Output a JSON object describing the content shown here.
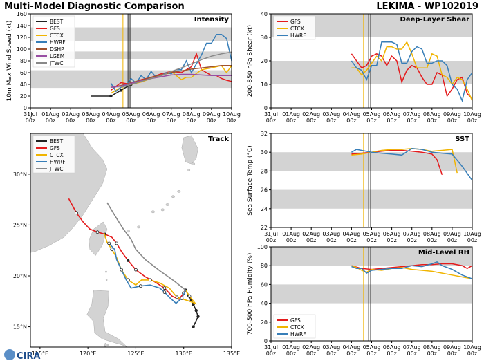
{
  "header": {
    "left_title": "Multi-Model Diagnostic Comparison",
    "right_title": "LEKIMA - WP102019"
  },
  "colors": {
    "BEST": "#222222",
    "GFS": "#e41a1c",
    "CTCX": "#f0b400",
    "HWRF": "#377eb8",
    "DSHP": "#a0522d",
    "LGEM": "#984ea3",
    "JTWC": "#888888",
    "band": "#d3d3d3",
    "land": "#d3d3d3"
  },
  "x_ticks": [
    "31Jul\n00z",
    "01Aug\n00z",
    "02Aug\n00z",
    "03Aug\n00z",
    "04Aug\n00z",
    "05Aug\n00z",
    "06Aug\n00z",
    "07Aug\n00z",
    "08Aug\n00z",
    "09Aug\n00z",
    "10Aug\n00z"
  ],
  "verticals": [
    {
      "x": 4.6,
      "color": "#f0b400"
    },
    {
      "x": 4.85,
      "color": "#222222"
    },
    {
      "x": 4.95,
      "color": "#222222"
    }
  ],
  "logo": {
    "text": "CIRA"
  },
  "chart_data": [
    {
      "type": "line",
      "title": "Intensity",
      "ylabel": "10m Max Wind Speed (kt)",
      "xlim": [
        0,
        10
      ],
      "ylim": [
        0,
        160
      ],
      "yticks": [
        0,
        20,
        40,
        60,
        80,
        100,
        120,
        140,
        160
      ],
      "bands": [
        [
          34,
          64
        ],
        [
          83,
          96
        ],
        [
          113,
          137
        ]
      ],
      "legend": "top-left",
      "series": [
        {
          "name": "BEST",
          "color": "#222222",
          "x": [
            3,
            3.5,
            4,
            4.25,
            4.5,
            4.75,
            5
          ],
          "y": [
            20,
            20,
            20,
            25,
            30,
            35,
            40
          ]
        },
        {
          "name": "GFS",
          "color": "#e41a1c",
          "x": [
            4,
            4.5,
            5,
            5.5,
            6,
            6.5,
            7,
            7.5,
            8,
            8.25,
            8.5,
            8.75,
            9,
            9.25,
            9.5,
            9.75,
            10
          ],
          "y": [
            30,
            43,
            40,
            48,
            52,
            58,
            62,
            60,
            70,
            92,
            65,
            60,
            55,
            55,
            50,
            47,
            45
          ]
        },
        {
          "name": "CTCX",
          "color": "#f0b400",
          "x": [
            4,
            4.5,
            5,
            5.5,
            6,
            6.5,
            7,
            7.5,
            7.75,
            8,
            8.5,
            9,
            9.5,
            9.75,
            10
          ],
          "y": [
            25,
            35,
            40,
            44,
            50,
            55,
            62,
            48,
            52,
            52,
            65,
            68,
            72,
            60,
            72
          ]
        },
        {
          "name": "HWRF",
          "color": "#377eb8",
          "x": [
            4,
            4.25,
            4.5,
            4.75,
            5,
            5.25,
            5.5,
            5.75,
            6,
            6.25,
            6.5,
            6.75,
            7,
            7.25,
            7.5,
            7.75,
            8,
            8.25,
            8.5,
            8.75,
            9,
            9.25,
            9.5,
            9.75,
            10
          ],
          "y": [
            42,
            28,
            35,
            38,
            50,
            42,
            55,
            48,
            62,
            52,
            55,
            60,
            58,
            65,
            65,
            80,
            60,
            75,
            90,
            110,
            110,
            125,
            125,
            118,
            80
          ]
        },
        {
          "name": "DSHP",
          "color": "#a0522d",
          "x": [
            4,
            4.5,
            5,
            5.5,
            6,
            6.5,
            7,
            7.5,
            8,
            8.5,
            9,
            9.5,
            10
          ],
          "y": [
            35,
            38,
            43,
            47,
            52,
            56,
            60,
            63,
            66,
            68,
            70,
            72,
            72
          ]
        },
        {
          "name": "LGEM",
          "color": "#984ea3",
          "x": [
            4,
            4.5,
            5,
            5.5,
            6,
            6.5,
            7,
            7.5,
            8,
            8.5,
            9,
            9.5,
            10
          ],
          "y": [
            35,
            37,
            42,
            46,
            50,
            53,
            56,
            57,
            57,
            56,
            55,
            55,
            55
          ]
        },
        {
          "name": "JTWC",
          "color": "#888888",
          "x": [
            4.5,
            5,
            5.5,
            6,
            6.5,
            7,
            7.5,
            8,
            8.5,
            9,
            9.5,
            10
          ],
          "y": [
            35,
            40,
            45,
            50,
            55,
            62,
            68,
            75,
            82,
            88,
            92,
            95
          ]
        }
      ]
    },
    {
      "type": "line",
      "title": "Deep-Layer Shear",
      "ylabel": "200-850 hPa Shear (kt)",
      "xlim": [
        0,
        10
      ],
      "ylim": [
        0,
        40
      ],
      "yticks": [
        0,
        10,
        20,
        30,
        40
      ],
      "bands": [
        [
          10,
          20
        ],
        [
          30,
          40
        ]
      ],
      "legend": "top-left",
      "series": [
        {
          "name": "GFS",
          "color": "#e41a1c",
          "x": [
            4,
            4.25,
            4.5,
            4.75,
            5,
            5.25,
            5.5,
            5.75,
            6,
            6.25,
            6.5,
            6.75,
            7,
            7.25,
            7.5,
            7.75,
            8,
            8.25,
            8.5,
            8.75,
            9,
            9.25,
            9.5,
            9.75,
            10
          ],
          "y": [
            23,
            20,
            17,
            18,
            22,
            23,
            22,
            18,
            22,
            20,
            11,
            16,
            18,
            17,
            13,
            10,
            10,
            15,
            14,
            5,
            8,
            12,
            13,
            6,
            4
          ]
        },
        {
          "name": "CTCX",
          "color": "#f0b400",
          "x": [
            4,
            4.25,
            4.5,
            4.75,
            5,
            5.25,
            5.5,
            5.75,
            6,
            6.25,
            6.5,
            6.75,
            7,
            7.25,
            7.5,
            7.75,
            8,
            8.25,
            8.5,
            8.75,
            9,
            9.25,
            9.5,
            9.75,
            10
          ],
          "y": [
            17,
            17,
            14,
            16,
            19,
            22,
            20,
            26,
            26,
            25,
            25,
            28,
            23,
            17,
            17,
            17,
            23,
            22,
            14,
            13,
            10,
            13,
            12,
            8,
            3
          ]
        },
        {
          "name": "HWRF",
          "color": "#377eb8",
          "x": [
            4,
            4.25,
            4.5,
            4.75,
            5,
            5.25,
            5.5,
            5.75,
            6,
            6.25,
            6.5,
            6.75,
            7,
            7.25,
            7.5,
            7.75,
            8,
            8.25,
            8.5,
            8.75,
            9,
            9.25,
            9.5,
            9.75,
            10
          ],
          "y": [
            20,
            17,
            16,
            12,
            18,
            18,
            28,
            28,
            28,
            27,
            19,
            19,
            24,
            26,
            25,
            19,
            19,
            20,
            20,
            18,
            10,
            8,
            3,
            12,
            15
          ]
        }
      ]
    },
    {
      "type": "line",
      "title": "Track",
      "xlim": [
        114,
        135
      ],
      "ylim": [
        13,
        34
      ],
      "xticks": [
        {
          "v": 115,
          "l": "115°E"
        },
        {
          "v": 120,
          "l": "120°E"
        },
        {
          "v": 125,
          "l": "125°E"
        },
        {
          "v": 130,
          "l": "130°E"
        },
        {
          "v": 135,
          "l": "135°E"
        }
      ],
      "yticks": [
        {
          "v": 15,
          "l": "15°N"
        },
        {
          "v": 20,
          "l": "20°N"
        },
        {
          "v": 25,
          "l": "25°N"
        },
        {
          "v": 30,
          "l": "30°N"
        }
      ],
      "legend": "top-left",
      "series": [
        {
          "name": "BEST",
          "color": "#222222",
          "x": [
            131.0,
            131.5,
            131.3,
            131.0,
            130.8,
            130.5,
            130.2
          ],
          "y": [
            15.0,
            16.0,
            16.6,
            17.2,
            17.6,
            18.1,
            18.6
          ]
        },
        {
          "name": "GFS",
          "color": "#e41a1c",
          "x": [
            130.2,
            130.0,
            129.5,
            128.8,
            128.0,
            127.0,
            126.0,
            125.0,
            124.2,
            123.5,
            123.0,
            122.5,
            121.8,
            121.0,
            120.2,
            119.5,
            118.8,
            118.0
          ],
          "y": [
            18.6,
            18.3,
            17.7,
            18.0,
            18.8,
            19.4,
            19.9,
            20.6,
            21.5,
            22.4,
            23.2,
            23.8,
            24.1,
            24.3,
            24.6,
            25.3,
            26.2,
            27.6
          ]
        },
        {
          "name": "CTCX",
          "color": "#f0b400",
          "x": [
            130.2,
            130.6,
            131.2,
            130.3,
            129.3,
            128.5,
            127.5,
            126.5,
            125.6,
            125.0,
            124.2,
            123.5,
            123.0,
            122.5,
            122.0,
            121.7
          ],
          "y": [
            18.6,
            18.0,
            17.3,
            17.6,
            17.9,
            18.8,
            19.3,
            19.6,
            19.6,
            19.1,
            19.6,
            20.6,
            21.8,
            22.6,
            23.3,
            24.2
          ]
        },
        {
          "name": "HWRF",
          "color": "#377eb8",
          "x": [
            130.2,
            129.8,
            129.2,
            128.5,
            128.0,
            127.5,
            126.5,
            125.5,
            124.5,
            124.0,
            123.5,
            123.0,
            122.8,
            122.2
          ],
          "y": [
            18.6,
            17.8,
            17.3,
            17.9,
            18.4,
            18.8,
            19.1,
            19.0,
            18.8,
            19.6,
            20.6,
            21.6,
            22.6,
            23.2
          ]
        },
        {
          "name": "JTWC",
          "color": "#888888",
          "x": [
            130.2,
            129.0,
            127.5,
            126.0,
            125.0,
            124.5,
            123.7,
            122.9,
            122.0
          ],
          "y": [
            18.6,
            19.5,
            20.5,
            21.6,
            22.6,
            23.6,
            24.6,
            25.8,
            27.2
          ]
        }
      ]
    },
    {
      "type": "line",
      "title": "SST",
      "ylabel": "Sea Surface Temp (°C)",
      "xlim": [
        0,
        10
      ],
      "ylim": [
        22,
        32
      ],
      "yticks": [
        22,
        24,
        26,
        28,
        30,
        32
      ],
      "bands": [
        [
          24,
          26
        ],
        [
          28,
          30
        ]
      ],
      "series": [
        {
          "name": "GFS",
          "color": "#e41a1c",
          "x": [
            4,
            4.5,
            5,
            5.5,
            6,
            6.5,
            7,
            7.5,
            8,
            8.25,
            8.5
          ],
          "y": [
            29.8,
            29.9,
            30.0,
            30.1,
            30.2,
            30.2,
            30.1,
            30.0,
            29.8,
            29.2,
            27.6
          ]
        },
        {
          "name": "CTCX",
          "color": "#f0b400",
          "x": [
            4,
            4.5,
            5,
            5.5,
            6,
            6.5,
            7,
            7.5,
            8,
            8.5,
            9,
            9.25
          ],
          "y": [
            29.7,
            29.8,
            30.0,
            30.2,
            30.3,
            30.3,
            30.4,
            30.3,
            30.1,
            30.2,
            30.3,
            27.8
          ]
        },
        {
          "name": "HWRF",
          "color": "#377eb8",
          "x": [
            4,
            4.25,
            4.5,
            5,
            5.5,
            6,
            6.5,
            7,
            7.5,
            8,
            8.5,
            9,
            9.5,
            10
          ],
          "y": [
            30.0,
            30.3,
            30.2,
            30.0,
            29.9,
            29.8,
            29.7,
            30.4,
            30.3,
            30.0,
            29.9,
            29.8,
            28.5,
            27.0
          ]
        }
      ]
    },
    {
      "type": "line",
      "title": "Mid-Level RH",
      "ylabel": "700-500 hPa Humidity (%)",
      "xlim": [
        0,
        10
      ],
      "ylim": [
        0,
        100
      ],
      "yticks": [
        0,
        20,
        40,
        60,
        80,
        100
      ],
      "bands": [
        [
          40,
          60
        ],
        [
          80,
          100
        ]
      ],
      "legend": "bottom-left",
      "series": [
        {
          "name": "GFS",
          "color": "#e41a1c",
          "x": [
            4,
            4.5,
            5,
            5.5,
            6,
            6.5,
            7,
            7.5,
            8,
            8.5,
            9,
            9.5,
            9.75,
            10
          ],
          "y": [
            80,
            77,
            76,
            77,
            78,
            79,
            80,
            81,
            81,
            82,
            82,
            80,
            77,
            80
          ]
        },
        {
          "name": "CTCX",
          "color": "#f0b400",
          "x": [
            4,
            4.25,
            4.5,
            4.75,
            5,
            5.5,
            6,
            6.5,
            7,
            7.5,
            8,
            8.5,
            9,
            9.5,
            10
          ],
          "y": [
            80,
            78,
            75,
            73,
            76,
            75,
            77,
            78,
            76,
            75,
            74,
            72,
            70,
            68,
            66
          ]
        },
        {
          "name": "HWRF",
          "color": "#377eb8",
          "x": [
            4,
            4.25,
            4.5,
            4.75,
            5,
            5.5,
            6,
            6.5,
            7,
            7.5,
            8,
            8.25,
            8.5,
            9,
            9.5,
            9.75,
            10
          ],
          "y": [
            79,
            77,
            77,
            72,
            75,
            76,
            77,
            77,
            80,
            79,
            82,
            84,
            80,
            76,
            70,
            68,
            66
          ]
        }
      ]
    }
  ]
}
